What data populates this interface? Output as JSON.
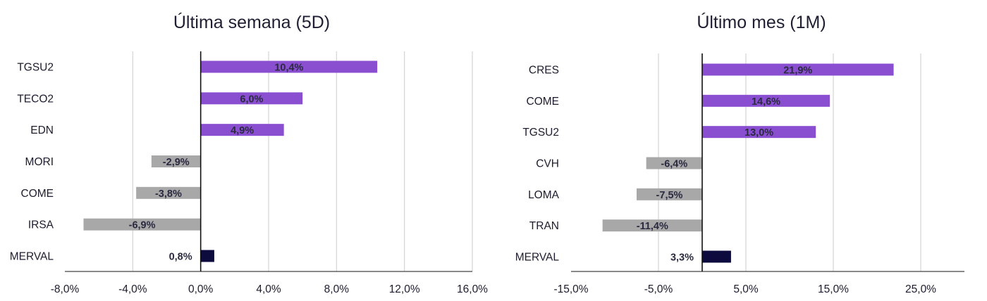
{
  "chart_data": [
    {
      "type": "bar",
      "orientation": "horizontal",
      "title": "Última semana (5D)",
      "categories": [
        "TGSU2",
        "TECO2",
        "EDN",
        "MORI",
        "COME",
        "IRSA",
        "MERVAL"
      ],
      "values": [
        10.4,
        6.0,
        4.9,
        -2.9,
        -3.8,
        -6.9,
        0.8
      ],
      "value_labels": [
        "10,4%",
        "6,0%",
        "4,9%",
        "-2,9%",
        "-3,8%",
        "-6,9%",
        "0,8%"
      ],
      "xlim": [
        -8,
        16
      ],
      "ticks": [
        -8,
        -4,
        0,
        4,
        8,
        12,
        16
      ],
      "tick_labels": [
        "-8,0%",
        "-4,0%",
        "0,0%",
        "4,0%",
        "8,0%",
        "12,0%",
        "16,0%"
      ],
      "grid": true,
      "colors": {
        "positive": "#8a4fd0",
        "negative": "#a8a8a8",
        "index": "#0d0b3d"
      }
    },
    {
      "type": "bar",
      "orientation": "horizontal",
      "title": "Último mes (1M)",
      "categories": [
        "CRES",
        "COME",
        "TGSU2",
        "CVH",
        "LOMA",
        "TRAN",
        "MERVAL"
      ],
      "values": [
        21.9,
        14.6,
        13.0,
        -6.4,
        -7.5,
        -11.4,
        3.3
      ],
      "value_labels": [
        "21,9%",
        "14,6%",
        "13,0%",
        "-6,4%",
        "-7,5%",
        "-11,4%",
        "3,3%"
      ],
      "xlim": [
        -15,
        30
      ],
      "ticks": [
        -15,
        -5,
        5,
        15,
        25
      ],
      "tick_labels": [
        "-15,0%",
        "-5,0%",
        "5,0%",
        "15,0%",
        "25,0%"
      ],
      "grid": true,
      "colors": {
        "positive": "#8a4fd0",
        "negative": "#a8a8a8",
        "index": "#0d0b3d"
      }
    }
  ]
}
